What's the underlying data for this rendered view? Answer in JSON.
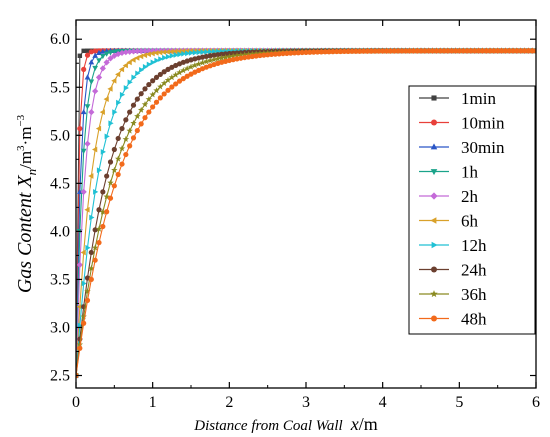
{
  "chart_data": {
    "type": "line",
    "xlabel": "Distance from Coal Wall",
    "xlabel_var": "x",
    "xlabel_unit": "/m",
    "ylabel": "Gas Content",
    "ylabel_var": "X",
    "ylabel_sub": "n",
    "ylabel_unit": "/m",
    "ylabel_unit_sup1": "3",
    "ylabel_unit_mid": "·m",
    "ylabel_unit_sup2": "−3",
    "xlim": [
      0,
      6
    ],
    "ylim": [
      2.37,
      6.2
    ],
    "xticks": [
      "0",
      "1",
      "2",
      "3",
      "4",
      "5",
      "6"
    ],
    "yticks": [
      "2.5",
      "3.0",
      "3.5",
      "4.0",
      "4.5",
      "5.0",
      "5.5",
      "6.0"
    ],
    "ytick_values": [
      2.5,
      3.0,
      3.5,
      4.0,
      4.5,
      5.0,
      5.5,
      6.0
    ],
    "grid": false,
    "legend_position": "right",
    "model": {
      "saturation": 5.88,
      "initial": 2.5,
      "x_step": 0.05,
      "note_source_shape": "saturating exponential from wall"
    },
    "series": [
      {
        "name": "1min",
        "color": "#404040",
        "marker": "square",
        "k": 0.012
      },
      {
        "name": "10min",
        "color": "#e8403a",
        "marker": "circle",
        "k": 0.035
      },
      {
        "name": "30min",
        "color": "#2a56c6",
        "marker": "triangle",
        "k": 0.06
      },
      {
        "name": "1h",
        "color": "#1aa38a",
        "marker": "tri-down",
        "k": 0.085
      },
      {
        "name": "2h",
        "color": "#c46ad8",
        "marker": "diamond",
        "k": 0.12
      },
      {
        "name": "6h",
        "color": "#d9a12a",
        "marker": "tri-left",
        "k": 0.21
      },
      {
        "name": "12h",
        "color": "#20c1d4",
        "marker": "tri-right",
        "k": 0.3
      },
      {
        "name": "24h",
        "color": "#6b3f2f",
        "marker": "circle",
        "k": 0.42
      },
      {
        "name": "36h",
        "color": "#8a8a20",
        "marker": "star",
        "k": 0.5
      },
      {
        "name": "48h",
        "color": "#f26a1b",
        "marker": "circle",
        "k": 0.57
      }
    ]
  }
}
